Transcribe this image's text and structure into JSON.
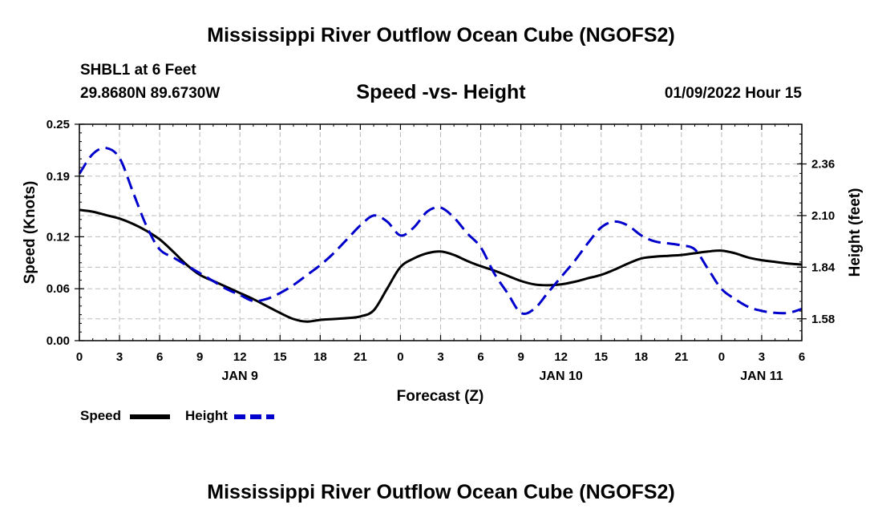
{
  "header": {
    "title": "Mississippi River Outflow Ocean Cube (NGOFS2)",
    "station": "SHBL1 at 6 Feet",
    "coords": "29.8680N  89.6730W",
    "chart_title": "Speed -vs- Height",
    "date_label": "01/09/2022 Hour 15"
  },
  "footer": {
    "title": "Mississippi River Outflow Ocean Cube (NGOFS2)"
  },
  "colors": {
    "speed": "#000000",
    "height": "#0000cc",
    "grid": "#bbbbbb"
  },
  "chart_data": {
    "type": "line",
    "title": "Speed -vs- Height",
    "xlabel": "Forecast (Z)",
    "ylabel": "Speed (Knots)",
    "y2label": "Height (feet)",
    "x_hours": [
      0,
      54
    ],
    "x_ticks": [
      {
        "hour": 0,
        "label": "0"
      },
      {
        "hour": 3,
        "label": "3"
      },
      {
        "hour": 6,
        "label": "6"
      },
      {
        "hour": 9,
        "label": "9"
      },
      {
        "hour": 12,
        "label": "12"
      },
      {
        "hour": 15,
        "label": "15"
      },
      {
        "hour": 18,
        "label": "18"
      },
      {
        "hour": 21,
        "label": "21"
      },
      {
        "hour": 24,
        "label": "0"
      },
      {
        "hour": 27,
        "label": "3"
      },
      {
        "hour": 30,
        "label": "6"
      },
      {
        "hour": 33,
        "label": "9"
      },
      {
        "hour": 36,
        "label": "12"
      },
      {
        "hour": 39,
        "label": "15"
      },
      {
        "hour": 42,
        "label": "18"
      },
      {
        "hour": 45,
        "label": "21"
      },
      {
        "hour": 48,
        "label": "0"
      },
      {
        "hour": 51,
        "label": "3"
      },
      {
        "hour": 54,
        "label": "6"
      }
    ],
    "day_labels": [
      {
        "hour": 12,
        "label": "JAN 9"
      },
      {
        "hour": 36,
        "label": "JAN 10"
      },
      {
        "hour": 51,
        "label": "JAN 11"
      }
    ],
    "ylim": [
      0,
      0.25
    ],
    "y_ticks": [
      "0.00",
      "0.06",
      "0.12",
      "0.19",
      "0.25"
    ],
    "y2lim": [
      1.47,
      2.56
    ],
    "y2_ticks": [
      "1.58",
      "1.84",
      "2.10",
      "2.36"
    ],
    "series": [
      {
        "name": "Speed",
        "axis": "left",
        "style": "solid",
        "x": [
          0,
          1,
          2,
          3,
          4,
          5,
          6,
          7,
          8,
          9,
          10,
          11,
          12,
          13,
          14,
          15,
          16,
          17,
          18,
          19,
          20,
          21,
          22,
          23,
          24,
          25,
          26,
          27,
          28,
          29,
          30,
          31,
          32,
          33,
          34,
          35,
          36,
          37,
          38,
          39,
          40,
          41,
          42,
          43,
          44,
          45,
          46,
          47,
          48,
          49,
          50,
          51,
          52,
          53,
          54
        ],
        "values": [
          0.151,
          0.149,
          0.145,
          0.141,
          0.135,
          0.127,
          0.117,
          0.103,
          0.088,
          0.076,
          0.069,
          0.062,
          0.055,
          0.048,
          0.04,
          0.032,
          0.025,
          0.022,
          0.024,
          0.025,
          0.026,
          0.028,
          0.035,
          0.06,
          0.085,
          0.095,
          0.101,
          0.103,
          0.099,
          0.092,
          0.086,
          0.081,
          0.075,
          0.069,
          0.065,
          0.064,
          0.065,
          0.068,
          0.072,
          0.076,
          0.082,
          0.089,
          0.095,
          0.097,
          0.098,
          0.099,
          0.101,
          0.103,
          0.104,
          0.101,
          0.096,
          0.093,
          0.091,
          0.089,
          0.088
        ]
      },
      {
        "name": "Height",
        "axis": "right",
        "style": "dashed",
        "x": [
          0,
          1,
          2,
          3,
          4,
          5,
          6,
          7,
          8,
          9,
          10,
          11,
          12,
          13,
          14,
          15,
          16,
          17,
          18,
          19,
          20,
          21,
          22,
          23,
          24,
          25,
          26,
          27,
          28,
          29,
          30,
          31,
          32,
          33,
          34,
          35,
          36,
          37,
          38,
          39,
          40,
          41,
          42,
          43,
          44,
          45,
          46,
          47,
          48,
          49,
          50,
          51,
          52,
          53,
          54
        ],
        "values": [
          2.31,
          2.41,
          2.44,
          2.39,
          2.22,
          2.05,
          1.93,
          1.89,
          1.85,
          1.81,
          1.77,
          1.73,
          1.7,
          1.67,
          1.68,
          1.71,
          1.75,
          1.8,
          1.85,
          1.91,
          1.98,
          2.05,
          2.1,
          2.07,
          2.0,
          2.04,
          2.12,
          2.14,
          2.09,
          2.01,
          1.94,
          1.81,
          1.71,
          1.61,
          1.63,
          1.71,
          1.79,
          1.87,
          1.96,
          2.04,
          2.07,
          2.05,
          2.0,
          1.97,
          1.96,
          1.95,
          1.93,
          1.83,
          1.73,
          1.68,
          1.64,
          1.62,
          1.61,
          1.61,
          1.63
        ]
      }
    ],
    "legend": [
      {
        "name": "Speed",
        "style": "solid"
      },
      {
        "name": "Height",
        "style": "dashed"
      }
    ],
    "legend_position": "bottom-left",
    "grid": true
  }
}
